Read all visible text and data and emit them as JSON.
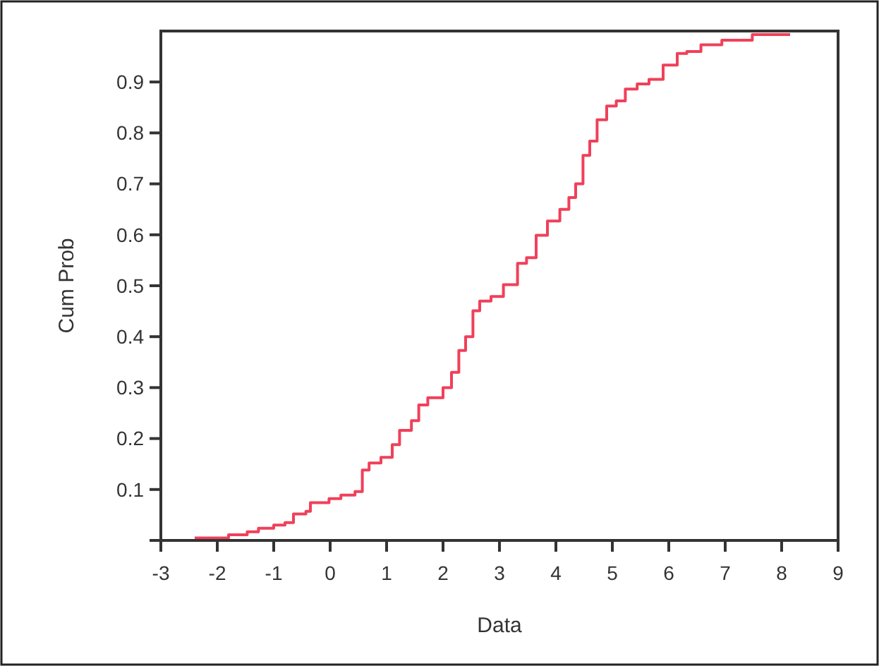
{
  "chart_data": {
    "type": "step",
    "xlabel": "Data",
    "ylabel": "Cum Prob",
    "x": [
      -2.4,
      -1.8,
      -1.47,
      -1.27,
      -1.0,
      -0.8,
      -0.65,
      -0.43,
      -0.35,
      -0.02,
      0.19,
      0.44,
      0.57,
      0.69,
      0.9,
      1.1,
      1.23,
      1.44,
      1.57,
      1.73,
      2.0,
      2.15,
      2.28,
      2.4,
      2.53,
      2.65,
      2.85,
      3.07,
      3.32,
      3.48,
      3.65,
      3.85,
      4.07,
      4.23,
      4.35,
      4.48,
      4.6,
      4.73,
      4.9,
      5.07,
      5.23,
      5.44,
      5.65,
      5.9,
      6.15,
      6.32,
      6.57,
      6.94,
      7.48,
      8.15
    ],
    "series": [
      {
        "color": "#f0405a",
        "values": [
          0.005,
          0.011,
          0.017,
          0.024,
          0.03,
          0.035,
          0.052,
          0.057,
          0.074,
          0.082,
          0.089,
          0.096,
          0.138,
          0.152,
          0.163,
          0.188,
          0.216,
          0.235,
          0.266,
          0.28,
          0.3,
          0.33,
          0.373,
          0.4,
          0.451,
          0.47,
          0.479,
          0.502,
          0.544,
          0.555,
          0.599,
          0.627,
          0.65,
          0.673,
          0.7,
          0.756,
          0.784,
          0.826,
          0.853,
          0.863,
          0.886,
          0.896,
          0.905,
          0.933,
          0.956,
          0.96,
          0.973,
          0.982,
          0.993,
          0.993
        ]
      }
    ],
    "xlim": [
      -3,
      9
    ],
    "ylim": [
      0,
      1
    ],
    "xticks": [
      -3,
      -2,
      -1,
      0,
      1,
      2,
      3,
      4,
      5,
      6,
      7,
      8,
      9
    ],
    "yticks": [
      0.1,
      0.2,
      0.3,
      0.4,
      0.5,
      0.6,
      0.7,
      0.8,
      0.9
    ],
    "grid": false
  }
}
